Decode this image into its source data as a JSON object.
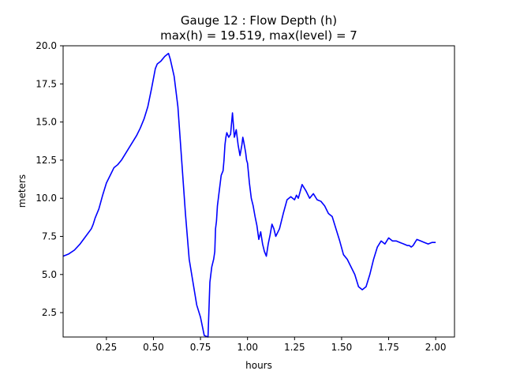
{
  "chart_data": {
    "type": "line",
    "title_line1": "Gauge 12 : Flow Depth (h)",
    "title_line2": "max(h) =  19.519,    max(level) = 7",
    "xlabel": "hours",
    "ylabel": "meters",
    "xlim": [
      0.02,
      2.1
    ],
    "ylim": [
      0.9,
      20.0
    ],
    "x_ticks": [
      0.25,
      0.5,
      0.75,
      1.0,
      1.25,
      1.5,
      1.75,
      2.0
    ],
    "x_tick_labels": [
      "0.25",
      "0.50",
      "0.75",
      "1.00",
      "1.25",
      "1.50",
      "1.75",
      "2.00"
    ],
    "y_ticks": [
      2.5,
      5.0,
      7.5,
      10.0,
      12.5,
      15.0,
      17.5,
      20.0
    ],
    "y_tick_labels": [
      "2.5",
      "5.0",
      "7.5",
      "10.0",
      "12.5",
      "15.0",
      "17.5",
      "20.0"
    ],
    "grid": false,
    "line_color": "#0000ff",
    "series": [
      {
        "x": [
          0.02,
          0.05,
          0.08,
          0.11,
          0.14,
          0.17,
          0.18,
          0.19,
          0.21,
          0.23,
          0.25,
          0.27,
          0.29,
          0.31,
          0.33,
          0.35,
          0.37,
          0.39,
          0.41,
          0.43,
          0.45,
          0.47,
          0.49,
          0.51,
          0.52,
          0.54,
          0.56,
          0.58,
          0.59,
          0.61,
          0.63,
          0.65,
          0.67,
          0.69,
          0.71,
          0.73,
          0.75,
          0.77,
          0.79,
          0.8,
          0.81,
          0.82,
          0.826,
          0.83,
          0.835,
          0.84,
          0.85,
          0.86,
          0.87,
          0.875,
          0.88,
          0.885,
          0.89,
          0.9,
          0.91,
          0.92,
          0.93,
          0.94,
          0.95,
          0.96,
          0.97,
          0.975,
          0.98,
          0.99,
          0.995,
          1.0,
          1.01,
          1.02,
          1.03,
          1.04,
          1.05,
          1.06,
          1.07,
          1.08,
          1.09,
          1.1,
          1.11,
          1.12,
          1.13,
          1.14,
          1.15,
          1.17,
          1.19,
          1.21,
          1.23,
          1.25,
          1.26,
          1.27,
          1.29,
          1.31,
          1.33,
          1.35,
          1.37,
          1.39,
          1.41,
          1.43,
          1.45,
          1.47,
          1.49,
          1.51,
          1.53,
          1.55,
          1.57,
          1.59,
          1.61,
          1.63,
          1.65,
          1.67,
          1.69,
          1.71,
          1.73,
          1.75,
          1.77,
          1.79,
          1.81,
          1.83,
          1.85,
          1.86,
          1.87,
          1.88,
          1.89,
          1.9,
          1.92,
          1.94,
          1.96,
          1.98,
          2.0
        ],
        "y": [
          6.2,
          6.35,
          6.6,
          7.0,
          7.5,
          8.0,
          8.3,
          8.7,
          9.3,
          10.2,
          11.0,
          11.5,
          12.0,
          12.2,
          12.5,
          12.9,
          13.3,
          13.7,
          14.1,
          14.6,
          15.2,
          16.0,
          17.2,
          18.5,
          18.8,
          19.0,
          19.3,
          19.5,
          19.1,
          18.0,
          16.0,
          12.5,
          9.0,
          6.0,
          4.5,
          3.0,
          2.2,
          1.0,
          0.9,
          4.5,
          5.5,
          6.0,
          6.5,
          8.0,
          8.5,
          9.5,
          10.5,
          11.5,
          11.8,
          12.5,
          13.5,
          14.0,
          14.3,
          14.0,
          14.2,
          15.6,
          14.0,
          14.5,
          13.5,
          12.8,
          13.5,
          14.0,
          13.7,
          13.0,
          12.5,
          12.3,
          11.0,
          10.0,
          9.5,
          8.8,
          8.2,
          7.3,
          7.8,
          7.0,
          6.5,
          6.2,
          7.0,
          7.6,
          8.3,
          8.0,
          7.5,
          8.0,
          9.0,
          9.9,
          10.1,
          9.9,
          10.2,
          10.0,
          10.9,
          10.5,
          10.0,
          10.3,
          9.9,
          9.8,
          9.5,
          9.0,
          8.8,
          8.0,
          7.2,
          6.3,
          6.0,
          5.5,
          5.0,
          4.2,
          4.0,
          4.2,
          5.0,
          6.0,
          6.8,
          7.2,
          7.0,
          7.4,
          7.2,
          7.2,
          7.1,
          7.0,
          6.9,
          6.9,
          6.8,
          6.9,
          7.1,
          7.3,
          7.2,
          7.1,
          7.0,
          7.1,
          7.1
        ]
      }
    ]
  }
}
